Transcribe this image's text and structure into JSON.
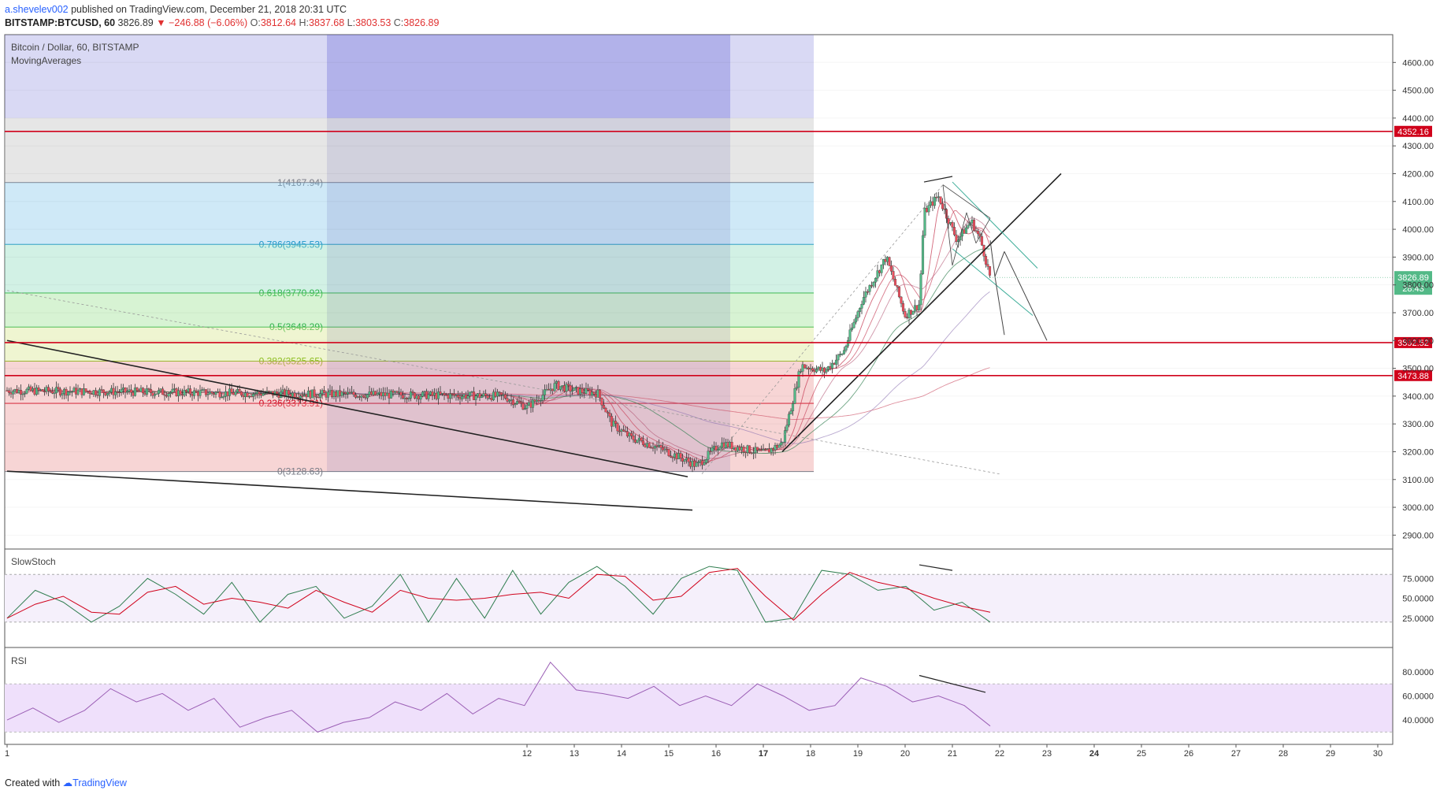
{
  "header": {
    "user": "a.shevelev002",
    "published": "published on TradingView.com, December 21, 2018 20:31 UTC",
    "symbol": "BITSTAMP:BTCUSD, 60",
    "last": "3826.89",
    "change": "▼ −246.88 (−6.06%)",
    "o_label": "O:",
    "o": "3812.64",
    "h_label": "H:",
    "h": "3837.68",
    "l_label": "L:",
    "l": "3803.53",
    "c_label": "C:",
    "c": "3826.89"
  },
  "pane_labels": {
    "title": "Bitcoin / Dollar, 60, BITSTAMP",
    "indicator": "MovingAverages",
    "stoch": "SlowStoch",
    "rsi": "RSI"
  },
  "footer": {
    "created": "Created with",
    "brand": "TradingView"
  },
  "colors": {
    "up": "#53b987",
    "down": "#eb4d5c",
    "hline": "#d0021b",
    "ma_red": "#c8425a",
    "ma_green": "#2f7d4f",
    "stoch_band": "#f5f0fb",
    "rsi_band": "#efe0fb"
  },
  "chart_data": [
    {
      "type": "candlestick",
      "title": "Bitcoin / Dollar, 60, BITSTAMP",
      "x_ticks": [
        "1",
        "12",
        "13",
        "14",
        "15",
        "16",
        "17",
        "18",
        "19",
        "20",
        "21",
        "22",
        "23",
        "24",
        "25",
        "26",
        "27",
        "28",
        "29",
        "30"
      ],
      "y_ticks": [
        "4600.00",
        "4500.00",
        "4400.00",
        "4300.00",
        "4200.00",
        "4100.00",
        "4000.00",
        "3900.00",
        "3800.00",
        "3700.00",
        "3600.00",
        "3500.00",
        "3400.00",
        "3300.00",
        "3200.00",
        "3100.00",
        "3000.00",
        "2900.00"
      ],
      "ylim": [
        2850,
        4700
      ],
      "last_price": 3826.89,
      "last_price_label": "3826.89",
      "countdown_label": "28:43",
      "horizontal_levels": [
        {
          "value": 4352.16,
          "label": "4352.16"
        },
        {
          "value": 3592.52,
          "label": "3592.52"
        },
        {
          "value": 3473.88,
          "label": "3473.88"
        }
      ],
      "fibonacci": [
        {
          "ratio": "1",
          "price": 4167.94,
          "label": "1(4167.94)",
          "color": "#787b86",
          "fill": "rgba(190,190,190,0.45)"
        },
        {
          "ratio": "0.786",
          "price": 3945.53,
          "label": "0.786(3945.53)",
          "color": "#2196c9",
          "fill": "rgba(135,200,235,0.40)"
        },
        {
          "ratio": "0.618",
          "price": 3770.92,
          "label": "0.618(3770.92)",
          "color": "#2db34a",
          "fill": "rgba(125,215,180,0.35)"
        },
        {
          "ratio": "0.5",
          "price": 3648.29,
          "label": "0.5(3648.29)",
          "color": "#2db34a",
          "fill": "rgba(140,220,130,0.35)"
        },
        {
          "ratio": "0.382",
          "price": 3525.65,
          "label": "0.382(3525.65)",
          "color": "#8cbd1e",
          "fill": "rgba(215,230,140,0.40)"
        },
        {
          "ratio": "0.236",
          "price": 3373.91,
          "label": "0.236(3373.91)",
          "color": "#d0021b",
          "fill": "rgba(235,150,150,0.40)"
        },
        {
          "ratio": "0",
          "price": 3128.63,
          "label": "0(3128.63)",
          "color": "#787b86",
          "fill": "rgba(235,150,150,0.40)"
        }
      ],
      "price_path": [
        {
          "t": 1.0,
          "p": 3420
        },
        {
          "t": 11.5,
          "p": 3400
        },
        {
          "t": 12.0,
          "p": 3360
        },
        {
          "t": 12.6,
          "p": 3440
        },
        {
          "t": 13.0,
          "p": 3420
        },
        {
          "t": 13.5,
          "p": 3410
        },
        {
          "t": 13.8,
          "p": 3300
        },
        {
          "t": 14.2,
          "p": 3250
        },
        {
          "t": 14.7,
          "p": 3220
        },
        {
          "t": 15.1,
          "p": 3190
        },
        {
          "t": 15.6,
          "p": 3150
        },
        {
          "t": 16.1,
          "p": 3230
        },
        {
          "t": 16.6,
          "p": 3210
        },
        {
          "t": 17.0,
          "p": 3195
        },
        {
          "t": 17.4,
          "p": 3230
        },
        {
          "t": 17.8,
          "p": 3510
        },
        {
          "t": 18.3,
          "p": 3490
        },
        {
          "t": 18.7,
          "p": 3560
        },
        {
          "t": 19.1,
          "p": 3750
        },
        {
          "t": 19.6,
          "p": 3900
        },
        {
          "t": 20.0,
          "p": 3690
        },
        {
          "t": 20.3,
          "p": 3730
        },
        {
          "t": 20.4,
          "p": 4060
        },
        {
          "t": 20.7,
          "p": 4120
        },
        {
          "t": 21.1,
          "p": 3960
        },
        {
          "t": 21.4,
          "p": 4030
        },
        {
          "t": 21.6,
          "p": 3960
        },
        {
          "t": 21.8,
          "p": 3826.89
        }
      ]
    },
    {
      "type": "line",
      "title": "SlowStoch",
      "y_ticks": [
        "75.0000",
        "50.0000",
        "25.0000"
      ],
      "ylim": [
        0,
        100
      ],
      "bands": [
        80,
        20
      ],
      "series": [
        {
          "values": [
            25,
            60,
            45,
            20,
            40,
            75,
            55,
            30,
            70,
            20,
            55,
            65,
            25,
            40,
            80,
            20,
            75,
            25,
            85,
            30,
            70,
            90,
            65,
            30,
            75,
            90,
            85,
            20,
            25,
            85,
            80,
            60,
            65,
            35,
            45,
            20
          ]
        }
      ]
    },
    {
      "type": "line",
      "title": "RSI",
      "y_ticks": [
        "80.0000",
        "60.0000",
        "40.0000"
      ],
      "ylim": [
        25,
        95
      ],
      "bands": [
        70,
        30
      ],
      "series": [
        {
          "values": [
            40,
            50,
            38,
            48,
            66,
            55,
            62,
            48,
            58,
            34,
            42,
            48,
            30,
            38,
            42,
            55,
            48,
            62,
            45,
            58,
            52,
            88,
            65,
            62,
            58,
            68,
            52,
            60,
            52,
            70,
            60,
            48,
            52,
            75,
            68,
            55,
            60,
            52,
            35
          ]
        }
      ]
    }
  ]
}
